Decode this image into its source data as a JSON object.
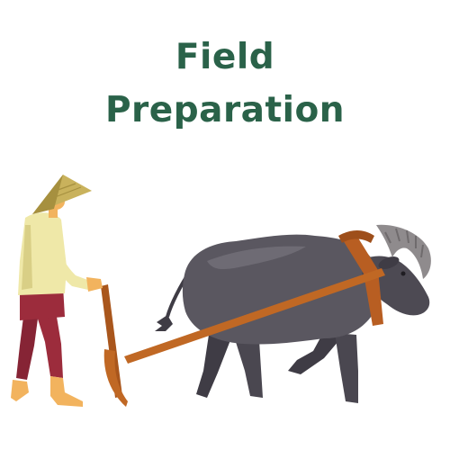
{
  "title": {
    "line1": "Field",
    "line2": "Preparation"
  },
  "colors": {
    "title": "#2a6249",
    "hat": "#c9b25c",
    "hat_shade": "#a6903f",
    "skin": "#f2b35e",
    "shirt": "#efe8a8",
    "shirt_shade": "#d9cf86",
    "pants": "#9c2c3c",
    "buffalo": "#5a5760",
    "buffalo_dark": "#3f3c45",
    "buffalo_light": "#6e6b74",
    "horn": "#8f8b8d",
    "horn_ring": "#6f6b6d",
    "harness": "#b85e22",
    "plow": "#c06824"
  },
  "icons": {
    "illustration": "farmer-plowing-with-buffalo"
  }
}
